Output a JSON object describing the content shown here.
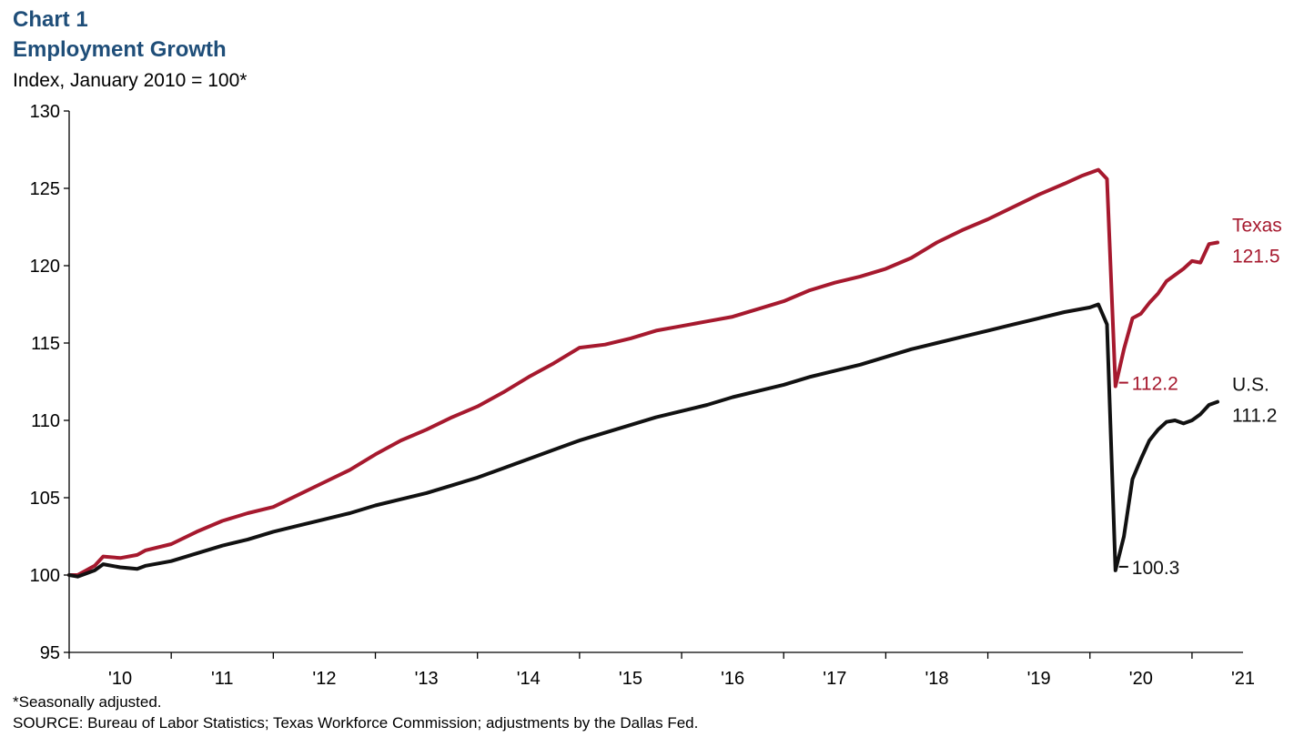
{
  "header": {
    "title_line1": "Chart 1",
    "title_line2": "Employment Growth",
    "subtitle": "Index, January 2010 = 100*"
  },
  "footer": {
    "note": "*Seasonally adjusted.",
    "source": "SOURCE: Bureau of Labor Statistics; Texas Workforce Commission; adjustments by the Dallas Fed."
  },
  "chart_data": {
    "type": "line",
    "title": "Employment Growth",
    "ylabel": "Index, January 2010 = 100*",
    "ylim": [
      95,
      130
    ],
    "yticks": [
      95,
      100,
      105,
      110,
      115,
      120,
      125,
      130
    ],
    "xlim": [
      2010.0,
      2021.5
    ],
    "xtick_labels": [
      "'10",
      "'11",
      "'12",
      "'13",
      "'14",
      "'15",
      "'16",
      "'17",
      "'18",
      "'19",
      "'20",
      "'21"
    ],
    "grid": false,
    "colors": {
      "texas": "#a6192e",
      "us": "#111111"
    },
    "series": [
      {
        "name": "Texas",
        "end_label_value": "121.5",
        "points": [
          [
            2010.0,
            100.0
          ],
          [
            2010.083,
            100.0
          ],
          [
            2010.25,
            100.6
          ],
          [
            2010.333,
            101.2
          ],
          [
            2010.5,
            101.1
          ],
          [
            2010.667,
            101.3
          ],
          [
            2010.75,
            101.6
          ],
          [
            2011.0,
            102.0
          ],
          [
            2011.25,
            102.8
          ],
          [
            2011.5,
            103.5
          ],
          [
            2011.75,
            104.0
          ],
          [
            2012.0,
            104.4
          ],
          [
            2012.25,
            105.2
          ],
          [
            2012.5,
            106.0
          ],
          [
            2012.75,
            106.8
          ],
          [
            2013.0,
            107.8
          ],
          [
            2013.25,
            108.7
          ],
          [
            2013.5,
            109.4
          ],
          [
            2013.75,
            110.2
          ],
          [
            2014.0,
            110.9
          ],
          [
            2014.25,
            111.8
          ],
          [
            2014.5,
            112.8
          ],
          [
            2014.75,
            113.7
          ],
          [
            2015.0,
            114.7
          ],
          [
            2015.25,
            114.9
          ],
          [
            2015.5,
            115.3
          ],
          [
            2015.75,
            115.8
          ],
          [
            2016.0,
            116.1
          ],
          [
            2016.25,
            116.4
          ],
          [
            2016.5,
            116.7
          ],
          [
            2016.75,
            117.2
          ],
          [
            2017.0,
            117.7
          ],
          [
            2017.25,
            118.4
          ],
          [
            2017.5,
            118.9
          ],
          [
            2017.75,
            119.3
          ],
          [
            2018.0,
            119.8
          ],
          [
            2018.25,
            120.5
          ],
          [
            2018.5,
            121.5
          ],
          [
            2018.75,
            122.3
          ],
          [
            2019.0,
            123.0
          ],
          [
            2019.25,
            123.8
          ],
          [
            2019.5,
            124.6
          ],
          [
            2019.75,
            125.3
          ],
          [
            2019.917,
            125.8
          ],
          [
            2020.0,
            126.0
          ],
          [
            2020.083,
            126.2
          ],
          [
            2020.167,
            125.6
          ],
          [
            2020.25,
            112.2
          ],
          [
            2020.333,
            114.6
          ],
          [
            2020.417,
            116.6
          ],
          [
            2020.5,
            116.9
          ],
          [
            2020.583,
            117.6
          ],
          [
            2020.667,
            118.2
          ],
          [
            2020.75,
            119.0
          ],
          [
            2020.833,
            119.4
          ],
          [
            2020.917,
            119.8
          ],
          [
            2021.0,
            120.3
          ],
          [
            2021.083,
            120.2
          ],
          [
            2021.167,
            121.4
          ],
          [
            2021.25,
            121.5
          ]
        ]
      },
      {
        "name": "U.S.",
        "end_label_value": "111.2",
        "points": [
          [
            2010.0,
            100.0
          ],
          [
            2010.083,
            99.9
          ],
          [
            2010.25,
            100.3
          ],
          [
            2010.333,
            100.7
          ],
          [
            2010.5,
            100.5
          ],
          [
            2010.667,
            100.4
          ],
          [
            2010.75,
            100.6
          ],
          [
            2011.0,
            100.9
          ],
          [
            2011.25,
            101.4
          ],
          [
            2011.5,
            101.9
          ],
          [
            2011.75,
            102.3
          ],
          [
            2012.0,
            102.8
          ],
          [
            2012.25,
            103.2
          ],
          [
            2012.5,
            103.6
          ],
          [
            2012.75,
            104.0
          ],
          [
            2013.0,
            104.5
          ],
          [
            2013.25,
            104.9
          ],
          [
            2013.5,
            105.3
          ],
          [
            2013.75,
            105.8
          ],
          [
            2014.0,
            106.3
          ],
          [
            2014.25,
            106.9
          ],
          [
            2014.5,
            107.5
          ],
          [
            2014.75,
            108.1
          ],
          [
            2015.0,
            108.7
          ],
          [
            2015.25,
            109.2
          ],
          [
            2015.5,
            109.7
          ],
          [
            2015.75,
            110.2
          ],
          [
            2016.0,
            110.6
          ],
          [
            2016.25,
            111.0
          ],
          [
            2016.5,
            111.5
          ],
          [
            2016.75,
            111.9
          ],
          [
            2017.0,
            112.3
          ],
          [
            2017.25,
            112.8
          ],
          [
            2017.5,
            113.2
          ],
          [
            2017.75,
            113.6
          ],
          [
            2018.0,
            114.1
          ],
          [
            2018.25,
            114.6
          ],
          [
            2018.5,
            115.0
          ],
          [
            2018.75,
            115.4
          ],
          [
            2019.0,
            115.8
          ],
          [
            2019.25,
            116.2
          ],
          [
            2019.5,
            116.6
          ],
          [
            2019.75,
            117.0
          ],
          [
            2020.0,
            117.3
          ],
          [
            2020.083,
            117.5
          ],
          [
            2020.167,
            116.2
          ],
          [
            2020.25,
            100.3
          ],
          [
            2020.333,
            102.5
          ],
          [
            2020.417,
            106.2
          ],
          [
            2020.5,
            107.5
          ],
          [
            2020.583,
            108.7
          ],
          [
            2020.667,
            109.4
          ],
          [
            2020.75,
            109.9
          ],
          [
            2020.833,
            110.0
          ],
          [
            2020.917,
            109.8
          ],
          [
            2021.0,
            110.0
          ],
          [
            2021.083,
            110.4
          ],
          [
            2021.167,
            111.0
          ],
          [
            2021.25,
            111.2
          ]
        ]
      }
    ],
    "annotations": [
      {
        "text": "112.2",
        "x": 2020.25,
        "y": 112.2,
        "series": "Texas"
      },
      {
        "text": "100.3",
        "x": 2020.25,
        "y": 100.3,
        "series": "U.S."
      }
    ]
  }
}
